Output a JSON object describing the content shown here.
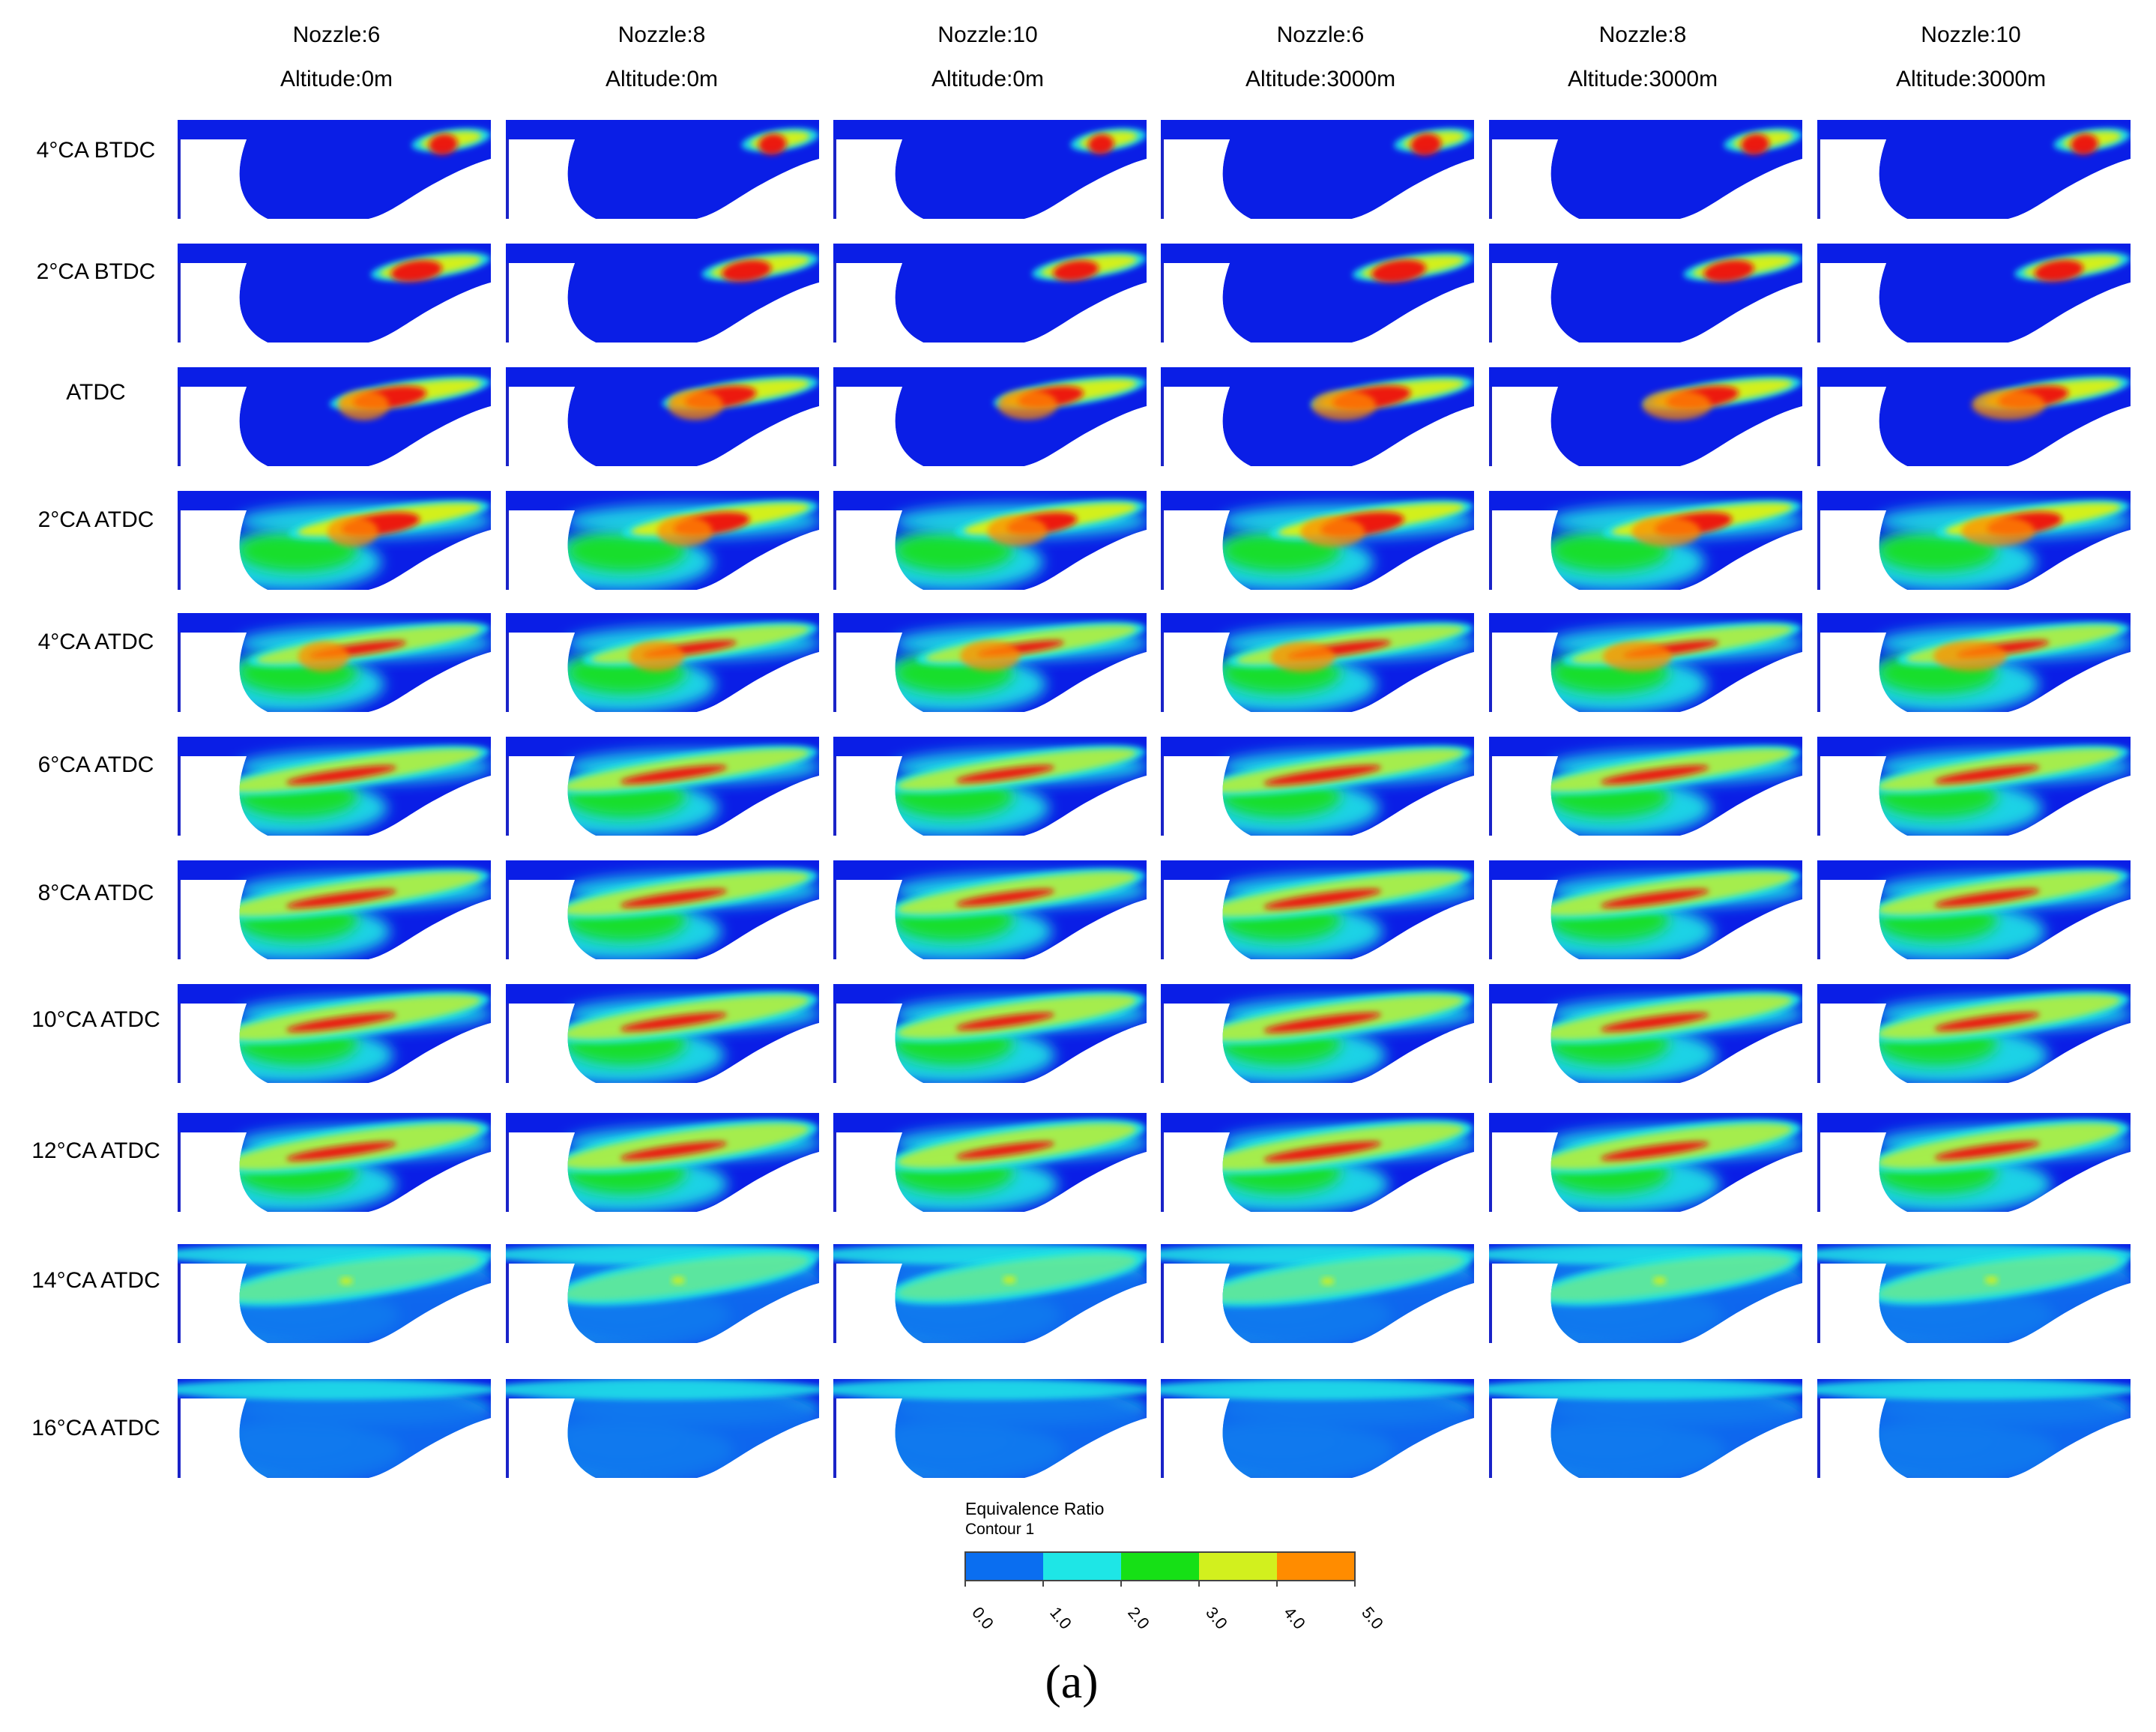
{
  "columns": [
    {
      "nozzle": "Nozzle:6",
      "altitude": "Altitude:0m",
      "amp": 1.0,
      "reach": 0.0,
      "cond": 0
    },
    {
      "nozzle": "Nozzle:8",
      "altitude": "Altitude:0m",
      "amp": 1.0,
      "reach": -0.1,
      "cond": 1
    },
    {
      "nozzle": "Nozzle:10",
      "altitude": "Altitude:0m",
      "amp": 0.95,
      "reach": -0.2,
      "cond": 2
    },
    {
      "nozzle": "Nozzle:6",
      "altitude": "Altitude:3000m",
      "amp": 1.05,
      "reach": 0.05,
      "cond": 3
    },
    {
      "nozzle": "Nozzle:8",
      "altitude": "Altitude:3000m",
      "amp": 1.0,
      "reach": -0.05,
      "cond": 4
    },
    {
      "nozzle": "Nozzle:10",
      "altitude": "Altitude:3000m",
      "amp": 1.0,
      "reach": -0.15,
      "cond": 5
    }
  ],
  "rows": [
    {
      "label": "4°CA BTDC"
    },
    {
      "label": "2°CA BTDC"
    },
    {
      "label": "ATDC"
    },
    {
      "label": "2°CA ATDC"
    },
    {
      "label": "4°CA ATDC"
    },
    {
      "label": "6°CA ATDC"
    },
    {
      "label": "8°CA ATDC"
    },
    {
      "label": "10°CA ATDC"
    },
    {
      "label": "12°CA ATDC"
    },
    {
      "label": "14°CA ATDC"
    },
    {
      "label": "16°CA ATDC"
    }
  ],
  "legend": {
    "title": "Equivalence Ratio",
    "subtitle": "Contour 1",
    "ticks": [
      "0.0",
      "1.0",
      "2.0",
      "3.0",
      "4.0",
      "5.0"
    ],
    "colors": [
      "#0a6ef0",
      "#1ee6e6",
      "#16e016",
      "#d2f01e",
      "#ff8c00"
    ]
  },
  "field_colors": {
    "background": "#0a1ee6",
    "levels": [
      "#0a1ee6",
      "#0a6ef0",
      "#1ee6e6",
      "#16e016",
      "#d2f01e",
      "#ff8c00",
      "#ee1010"
    ]
  },
  "caption": "(a)"
}
